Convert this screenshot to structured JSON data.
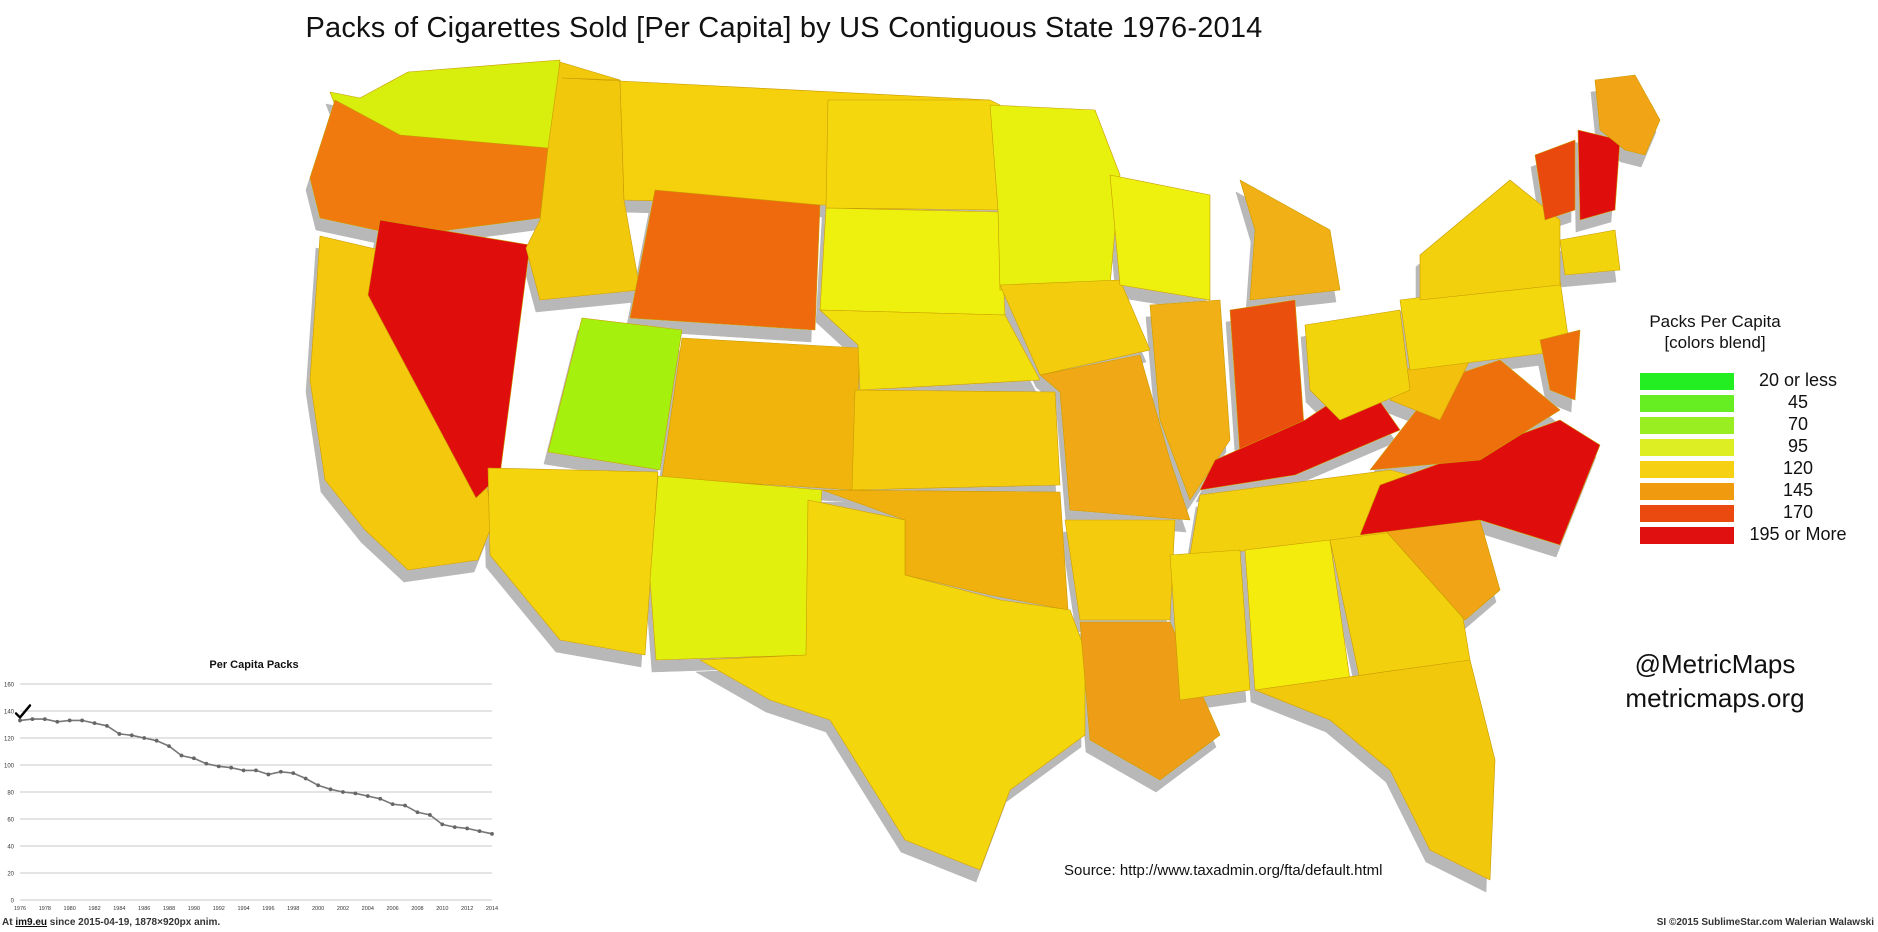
{
  "title": "Packs of Cigarettes Sold [Per Capita] by US Contiguous State 1976-2014",
  "legend": {
    "title_line1": "Packs Per Capita",
    "title_line2": "[colors blend]",
    "items": [
      {
        "label": "20 or less",
        "color": "#22ee22"
      },
      {
        "label": "45",
        "color": "#66ee22"
      },
      {
        "label": "70",
        "color": "#99ee22"
      },
      {
        "label": "95",
        "color": "#ddee22"
      },
      {
        "label": "120",
        "color": "#f6d012"
      },
      {
        "label": "145",
        "color": "#f09a10"
      },
      {
        "label": "170",
        "color": "#ea4a10"
      },
      {
        "label": "195 or More",
        "color": "#e01010"
      }
    ]
  },
  "credits": {
    "handle": "@MetricMaps",
    "site": "metricmaps.org",
    "source": "Source: http://www.taxadmin.org/fta/default.html"
  },
  "map_states": [
    {
      "name": "WA",
      "color": "#d8ee10"
    },
    {
      "name": "OR",
      "color": "#f07a10"
    },
    {
      "name": "CA",
      "color": "#f4c810"
    },
    {
      "name": "NV",
      "color": "#e01010"
    },
    {
      "name": "ID",
      "color": "#f2c810"
    },
    {
      "name": "MT",
      "color": "#f4d010"
    },
    {
      "name": "WY",
      "color": "#ee6a10"
    },
    {
      "name": "UT",
      "color": "#a6f010"
    },
    {
      "name": "AZ",
      "color": "#f4d410"
    },
    {
      "name": "CO",
      "color": "#f0b410"
    },
    {
      "name": "NM",
      "color": "#e2f010"
    },
    {
      "name": "ND",
      "color": "#f4d810"
    },
    {
      "name": "SD",
      "color": "#eef010"
    },
    {
      "name": "NE",
      "color": "#f2e010"
    },
    {
      "name": "KS",
      "color": "#f4cc10"
    },
    {
      "name": "OK",
      "color": "#f0b010"
    },
    {
      "name": "TX",
      "color": "#f4d610"
    },
    {
      "name": "MN",
      "color": "#e8f010"
    },
    {
      "name": "IA",
      "color": "#f2cc10"
    },
    {
      "name": "MO",
      "color": "#f0a812"
    },
    {
      "name": "AR",
      "color": "#f4cc10"
    },
    {
      "name": "LA",
      "color": "#ee9e12"
    },
    {
      "name": "WI",
      "color": "#eef010"
    },
    {
      "name": "IL",
      "color": "#f0b012"
    },
    {
      "name": "MI",
      "color": "#f0b012"
    },
    {
      "name": "IN",
      "color": "#ea5010"
    },
    {
      "name": "KY",
      "color": "#e01010"
    },
    {
      "name": "TN",
      "color": "#f2d010"
    },
    {
      "name": "MS",
      "color": "#f2d810"
    },
    {
      "name": "AL",
      "color": "#f4ec10"
    },
    {
      "name": "GA",
      "color": "#f2d010"
    },
    {
      "name": "FL",
      "color": "#f2c810"
    },
    {
      "name": "SC",
      "color": "#f0a412"
    },
    {
      "name": "NC",
      "color": "#e01010"
    },
    {
      "name": "VA",
      "color": "#ee7010"
    },
    {
      "name": "WV",
      "color": "#f2c010"
    },
    {
      "name": "OH",
      "color": "#f2d410"
    },
    {
      "name": "PA",
      "color": "#f2d810"
    },
    {
      "name": "NY",
      "color": "#f2d010"
    },
    {
      "name": "VT",
      "color": "#ea4a10"
    },
    {
      "name": "NH",
      "color": "#e01010"
    },
    {
      "name": "ME",
      "color": "#f0a412"
    },
    {
      "name": "MA",
      "color": "#f2d410"
    },
    {
      "name": "MD",
      "color": "#ee7010"
    }
  ],
  "chart_data": {
    "type": "line",
    "title": "Per Capita Packs",
    "xlabel": "",
    "ylabel": "",
    "ylim": [
      0,
      160
    ],
    "yticks": [
      "0",
      "20",
      "40",
      "60",
      "80",
      "100",
      "120",
      "140",
      "160"
    ],
    "xticks": [
      "1976",
      "1978",
      "1980",
      "1982",
      "1984",
      "1986",
      "1988",
      "1990",
      "1992",
      "1994",
      "1996",
      "1998",
      "2000",
      "2002",
      "2004",
      "2006",
      "2008",
      "2010",
      "2012",
      "2014"
    ],
    "grid": true,
    "series": [
      {
        "color": "#777777",
        "x": [
          1976,
          1977,
          1978,
          1979,
          1980,
          1981,
          1982,
          1983,
          1984,
          1985,
          1986,
          1987,
          1988,
          1989,
          1990,
          1991,
          1992,
          1993,
          1994,
          1995,
          1996,
          1997,
          1998,
          1999,
          2000,
          2001,
          2002,
          2003,
          2004,
          2005,
          2006,
          2007,
          2008,
          2009,
          2010,
          2011,
          2012,
          2013,
          2014
        ],
        "values": [
          133,
          134,
          134,
          132,
          133,
          133,
          131,
          129,
          123,
          122,
          120,
          118,
          114,
          107,
          105,
          101,
          99,
          98,
          96,
          96,
          93,
          95,
          94,
          90,
          85,
          82,
          80,
          79,
          77,
          75,
          71,
          70,
          65,
          63,
          56,
          54,
          53,
          51,
          49
        ]
      }
    ],
    "marker_year": 1976
  },
  "footer": {
    "left_prefix": "At ",
    "left_link": "im9.eu",
    "left_suffix": " since 2015-04-19, 1878×920px anim.",
    "right": "SI ©2015 SublimeStar.com Walerian Walawski"
  }
}
